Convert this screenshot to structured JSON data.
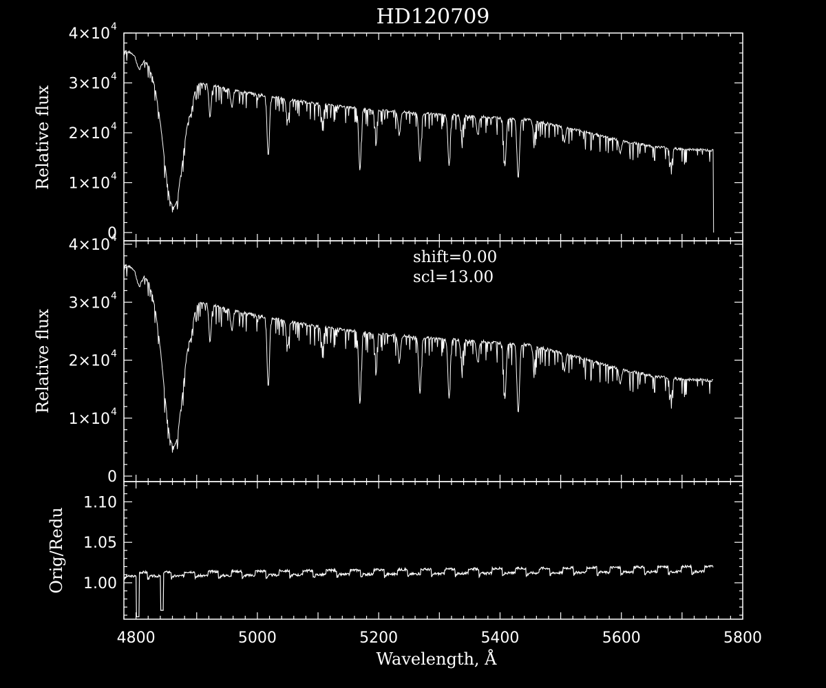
{
  "chart_data": [
    {
      "type": "line",
      "panel": "top",
      "title": "HD120709",
      "ylabel": "Relative flux",
      "xlim": [
        4780,
        5800
      ],
      "ylim": [
        0,
        40000
      ],
      "y_ticks": [
        {
          "value": 0,
          "mant": "",
          "exp": ""
        },
        {
          "value": 10000,
          "mant": "1×10",
          "exp": "4"
        },
        {
          "value": 20000,
          "mant": "2×10",
          "exp": "4"
        },
        {
          "value": 30000,
          "mant": "3×10",
          "exp": "4"
        },
        {
          "value": 40000,
          "mant": "4×10",
          "exp": "4"
        }
      ],
      "continuum": [
        [
          4780,
          36500
        ],
        [
          4800,
          35700
        ],
        [
          4830,
          33800
        ],
        [
          4850,
          32000
        ],
        [
          4870,
          30500
        ],
        [
          4900,
          30500
        ],
        [
          4950,
          28800
        ],
        [
          5000,
          27700
        ],
        [
          5100,
          25800
        ],
        [
          5200,
          24500
        ],
        [
          5300,
          23700
        ],
        [
          5400,
          23000
        ],
        [
          5450,
          22600
        ],
        [
          5500,
          21300
        ],
        [
          5550,
          19900
        ],
        [
          5600,
          18400
        ],
        [
          5650,
          17300
        ],
        [
          5700,
          16700
        ],
        [
          5750,
          16500
        ]
      ],
      "lines": [
        {
          "x": 4861,
          "depth": 26000,
          "width": 16
        },
        {
          "x": 4805,
          "depth": 2500,
          "width": 4
        },
        {
          "x": 4891,
          "depth": 1800,
          "width": 3
        },
        {
          "x": 4922,
          "depth": 6500,
          "width": 2
        },
        {
          "x": 4958,
          "depth": 3500,
          "width": 2
        },
        {
          "x": 5018,
          "depth": 12000,
          "width": 2
        },
        {
          "x": 5050,
          "depth": 4500,
          "width": 2
        },
        {
          "x": 5107,
          "depth": 3500,
          "width": 2
        },
        {
          "x": 5169,
          "depth": 12500,
          "width": 2
        },
        {
          "x": 5195,
          "depth": 4000,
          "width": 2
        },
        {
          "x": 5234,
          "depth": 4500,
          "width": 2
        },
        {
          "x": 5268,
          "depth": 9500,
          "width": 2
        },
        {
          "x": 5316,
          "depth": 10000,
          "width": 2
        },
        {
          "x": 5337,
          "depth": 3500,
          "width": 2
        },
        {
          "x": 5363,
          "depth": 3500,
          "width": 2
        },
        {
          "x": 5408,
          "depth": 9500,
          "width": 2
        },
        {
          "x": 5430,
          "depth": 12000,
          "width": 2
        },
        {
          "x": 5456,
          "depth": 3000,
          "width": 2
        },
        {
          "x": 5506,
          "depth": 3000,
          "width": 2
        },
        {
          "x": 5598,
          "depth": 2500,
          "width": 2
        },
        {
          "x": 5682,
          "depth": 3000,
          "width": 2
        }
      ],
      "cutoff_x": 5752
    },
    {
      "type": "line",
      "panel": "middle",
      "ylabel": "Relative flux",
      "annotations": [
        "shift=0.00",
        "scl=13.00"
      ],
      "xlim": [
        4780,
        5800
      ],
      "ylim": [
        0,
        40000
      ],
      "y_ticks": [
        {
          "value": 0,
          "mant": "",
          "exp": ""
        },
        {
          "value": 10000,
          "mant": "1×10",
          "exp": "4"
        },
        {
          "value": 20000,
          "mant": "2×10",
          "exp": "4"
        },
        {
          "value": 30000,
          "mant": "3×10",
          "exp": "4"
        },
        {
          "value": 40000,
          "mant": "4×10",
          "exp": "4"
        }
      ],
      "same_spectrum_as": "top"
    },
    {
      "type": "line",
      "panel": "bottom",
      "ylabel": "Orig/Redu",
      "xlabel": "Wavelength, Å",
      "xlim": [
        4780,
        5800
      ],
      "ylim": [
        0.955,
        1.125
      ],
      "y_ticks": [
        {
          "value": 1.0,
          "label": "1.00"
        },
        {
          "value": 1.05,
          "label": "1.05"
        },
        {
          "value": 1.1,
          "label": "1.10"
        }
      ],
      "x_ticks": [
        {
          "value": 4800,
          "label": "4800"
        },
        {
          "value": 5000,
          "label": "5000"
        },
        {
          "value": 5200,
          "label": "5200"
        },
        {
          "value": 5400,
          "label": "5400"
        },
        {
          "value": 5600,
          "label": "5600"
        },
        {
          "value": 5800,
          "label": "5800"
        }
      ],
      "ratio_segments": {
        "start": 4780,
        "end": 5752,
        "period": 39,
        "base": 1.008,
        "high": 1.013,
        "trend": 0.00025
      },
      "ratio_dips": [
        [
          4803,
          0.958
        ],
        [
          4843,
          0.966
        ]
      ]
    }
  ]
}
